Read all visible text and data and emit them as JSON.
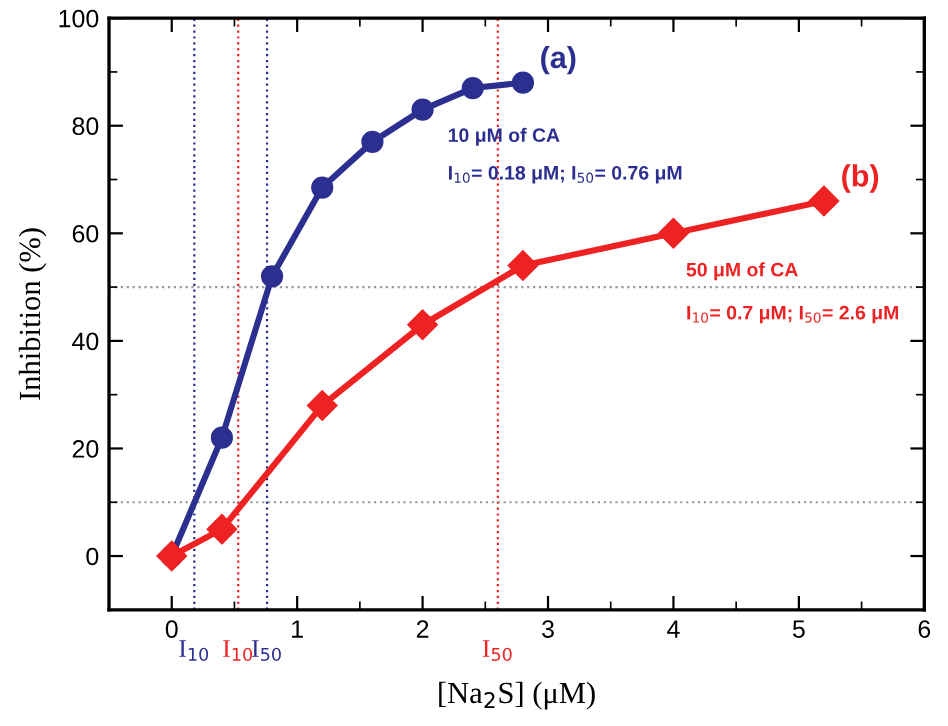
{
  "chart_data": {
    "type": "line",
    "xlabel": "[Na$_{2}$S] (μM)",
    "ylabel": "Inhibition (%)",
    "xlim": [
      -0.5,
      6
    ],
    "xticks": [
      0,
      1,
      2,
      3,
      4,
      5,
      6
    ],
    "ylim": [
      -10,
      100
    ],
    "yticks": [
      0,
      20,
      40,
      60,
      80,
      100
    ],
    "grid": false,
    "legend": false,
    "line_style": "solid",
    "series": [
      {
        "name": "(a)",
        "color": "#2b2f8f",
        "marker": "circle",
        "x": [
          0,
          0.4,
          0.8,
          1.2,
          1.6,
          2.0,
          2.4,
          2.8
        ],
        "values": [
          0,
          22,
          52,
          68.5,
          77,
          83,
          87,
          88
        ]
      },
      {
        "name": "(b)",
        "color": "#ee2222",
        "marker": "diamond",
        "x": [
          0,
          0.4,
          1.2,
          2.0,
          2.8,
          4.0,
          5.2
        ],
        "values": [
          0,
          5,
          28,
          43,
          54,
          60,
          66
        ]
      }
    ],
    "ref_lines": [
      {
        "axis": "x",
        "value": 0.18,
        "label": "I$_{10}$",
        "color": "#2b2f8f",
        "line_style": "dotted"
      },
      {
        "axis": "x",
        "value": 0.53,
        "label": "I$_{10}$",
        "color": "#ee2222",
        "line_style": "dotted"
      },
      {
        "axis": "x",
        "value": 0.76,
        "label": "I$_{50}$",
        "color": "#2b2f8f",
        "line_style": "dotted"
      },
      {
        "axis": "x",
        "value": 2.6,
        "label": "I$_{50}$",
        "color": "#ee2222",
        "line_style": "dotted"
      },
      {
        "axis": "y",
        "value": 50,
        "color": "#999999",
        "line_style": "dotted"
      },
      {
        "axis": "y",
        "value": 10,
        "color": "#999999",
        "line_style": "dotted"
      }
    ],
    "annotations": [
      "10 μM of CA",
      "I$_{10}$= 0.18 μM; I$_{50}$= 0.76 μM",
      "50 μM of CA",
      "I$_{10}$= 0.7 μM; I$_{50}$= 2.6 μM"
    ]
  }
}
